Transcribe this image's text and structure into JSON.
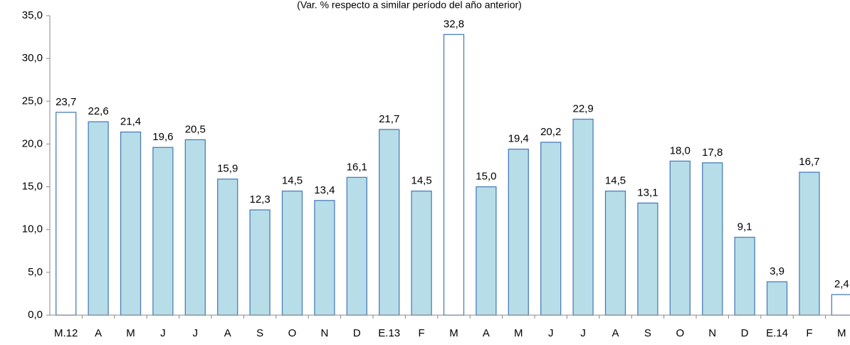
{
  "chart_data": {
    "type": "bar",
    "title": "(Var. % respecto a similar período del año anterior)",
    "categories": [
      "M.12",
      "A",
      "M",
      "J",
      "J",
      "A",
      "S",
      "O",
      "N",
      "D",
      "E.13",
      "F",
      "M",
      "A",
      "M",
      "J",
      "J",
      "A",
      "S",
      "O",
      "N",
      "D",
      "E.14",
      "F",
      "M"
    ],
    "values": [
      23.7,
      22.6,
      21.4,
      19.6,
      20.5,
      15.9,
      12.3,
      14.5,
      13.4,
      16.1,
      21.7,
      14.5,
      32.8,
      15.0,
      19.4,
      20.2,
      22.9,
      14.5,
      13.1,
      18.0,
      17.8,
      9.1,
      3.9,
      16.7,
      2.4
    ],
    "value_labels": [
      "23,7",
      "22,6",
      "21,4",
      "19,6",
      "20,5",
      "15,9",
      "12,3",
      "14,5",
      "13,4",
      "16,1",
      "21,7",
      "14,5",
      "32,8",
      "15,0",
      "19,4",
      "20,2",
      "22,9",
      "14,5",
      "13,1",
      "18,0",
      "17,8",
      "9,1",
      "3,9",
      "16,7",
      "2,4"
    ],
    "colors": [
      "#ffffff",
      "#b7dde8",
      "#b7dde8",
      "#b7dde8",
      "#b7dde8",
      "#b7dde8",
      "#b7dde8",
      "#b7dde8",
      "#b7dde8",
      "#b7dde8",
      "#b7dde8",
      "#b7dde8",
      "#ffffff",
      "#b7dde8",
      "#b7dde8",
      "#b7dde8",
      "#b7dde8",
      "#b7dde8",
      "#b7dde8",
      "#b7dde8",
      "#b7dde8",
      "#b7dde8",
      "#b7dde8",
      "#b7dde8",
      "#ffffff"
    ],
    "edge_color": "#4a7ebb",
    "ylim": [
      0,
      35
    ],
    "yticks": [
      {
        "value": 0,
        "label": "0,0"
      },
      {
        "value": 5,
        "label": "5,0"
      },
      {
        "value": 10,
        "label": "10,0"
      },
      {
        "value": 15,
        "label": "15,0"
      },
      {
        "value": 20,
        "label": "20,0"
      },
      {
        "value": 25,
        "label": "25,0"
      },
      {
        "value": 30,
        "label": "30,0"
      },
      {
        "value": 35,
        "label": "35,0"
      }
    ],
    "grid": false
  }
}
